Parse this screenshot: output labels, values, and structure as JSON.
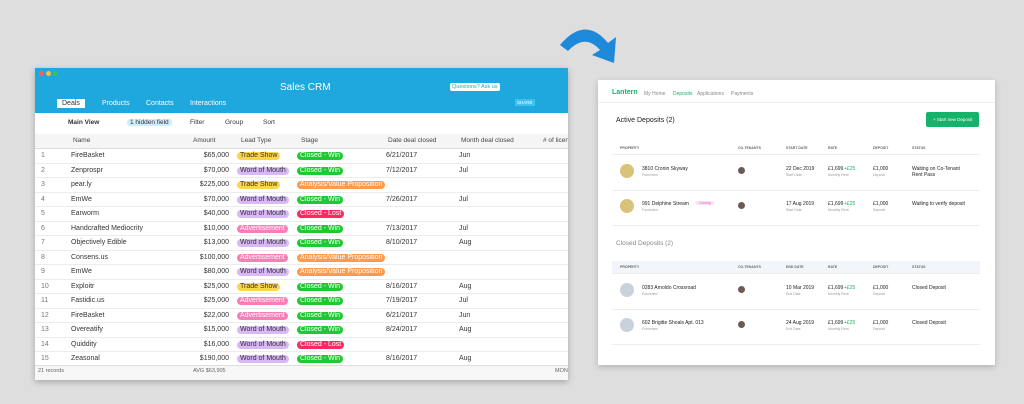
{
  "crm": {
    "title": "Sales CRM",
    "help": "Questions? Ask us",
    "tabs": [
      "Deals",
      "Products",
      "Contacts",
      "Interactions"
    ],
    "share": "SHARE",
    "toolbar": [
      "Main View",
      "1 hidden field",
      "Filter",
      "Group",
      "Sort"
    ],
    "columns": [
      "Name",
      "Amount",
      "Lead Type",
      "Stage",
      "Date deal closed",
      "Month deal closed",
      "# of licen"
    ],
    "rows": [
      [
        "1",
        "FireBasket",
        "$65,000",
        "Trade Show",
        "Closed - Win",
        "6/21/2017",
        "Jun"
      ],
      [
        "2",
        "Zenprospr",
        "$70,000",
        "Word of Mouth",
        "Closed - Win",
        "7/12/2017",
        "Jul"
      ],
      [
        "3",
        "pear.ly",
        "$225,000",
        "Trade Show",
        "Analysis/Value Proposition",
        null,
        null
      ],
      [
        "4",
        "EmWe",
        "$70,000",
        "Word of Mouth",
        "Closed - Win",
        "7/26/2017",
        "Jul"
      ],
      [
        "5",
        "Earworm",
        "$40,000",
        "Word of Mouth",
        "Closed - Lost",
        null,
        null
      ],
      [
        "6",
        "Handcrafted Mediocrity",
        "$10,000",
        "Advertisement",
        "Closed - Win",
        "7/13/2017",
        "Jul"
      ],
      [
        "7",
        "Objectively Edible",
        "$13,000",
        "Word of Mouth",
        "Closed - Win",
        "8/10/2017",
        "Aug"
      ],
      [
        "8",
        "Consens.us",
        "$100,000",
        "Advertisement",
        "Analysis/Value Proposition",
        null,
        null
      ],
      [
        "9",
        "EmWe",
        "$80,000",
        "Word of Mouth",
        "Analysis/Value Proposition",
        null,
        null
      ],
      [
        "10",
        "Exploitr",
        "$25,000",
        "Trade Show",
        "Closed - Win",
        "8/16/2017",
        "Aug"
      ],
      [
        "11",
        "Fastidic.us",
        "$25,000",
        "Advertisement",
        "Closed - Win",
        "7/19/2017",
        "Jul"
      ],
      [
        "12",
        "FireBasket",
        "$22,000",
        "Advertisement",
        "Closed - Win",
        "6/21/2017",
        "Jun"
      ],
      [
        "13",
        "Overeatify",
        "$15,000",
        "Word of Mouth",
        "Closed - Win",
        "8/24/2017",
        "Aug"
      ],
      [
        "14",
        "Quiddity",
        "$16,000",
        "Word of Mouth",
        "Closed - Lost",
        null,
        null
      ],
      [
        "15",
        "Zeasonal",
        "$190,000",
        "Word of Mouth",
        "Closed - Win",
        "8/16/2017",
        "Aug"
      ]
    ],
    "tag_colors": {
      "Trade Show": "#fcd54c",
      "Word of Mouth": "#d9b8f7",
      "Advertisement": "#f77fb6",
      "Closed - Win": "#20c933",
      "Closed - Lost": "#f82b60",
      "Analysis/Value Proposition": "#ff9a4d"
    },
    "footer": [
      "21 records",
      "AVG $63,905",
      "MON"
    ]
  },
  "lantern": {
    "brand": "Lantern",
    "nav": [
      "My Home",
      "Deposits",
      "Applications",
      "Payments"
    ],
    "active": {
      "title": "Active Deposits (2)",
      "button": "+ Start new Deposit",
      "columns": [
        "PROPERTY",
        "CO-TENANTS",
        "START DATE",
        "RATE",
        "DEPOSIT",
        "STATUS"
      ],
      "rows": [
        {
          "property": "3810 Cronin Skyway",
          "sub": "Furnished",
          "date": "22 Dec 2019",
          "date_sub": "Start Date",
          "rate": "£1,699",
          "extra": "+£25",
          "rate_sub": "Monthly Rent",
          "deposit": "£1,000",
          "deposit_sub": "Deposit",
          "status": "Waiting on Co-Tenant Rent Pass"
        },
        {
          "property": "991 Delphine Stream",
          "badge": "Closing",
          "sub": "Furnished",
          "date": "17 Aug 2019",
          "date_sub": "Start Date",
          "rate": "£1,699",
          "extra": "+£25",
          "rate_sub": "Monthly Rent",
          "deposit": "£1,000",
          "deposit_sub": "Deposit",
          "status": "Waiting to verify deposit"
        }
      ]
    },
    "closed": {
      "title": "Closed Deposits (2)",
      "columns": [
        "PROPERTY",
        "CO-TENANTS",
        "END DATE",
        "RATE",
        "DEPOSIT",
        "STATUS"
      ],
      "rows": [
        {
          "property": "0283 Arnoldo Crossroad",
          "sub": "Furnished",
          "date": "10 Mar 2019",
          "date_sub": "End Date",
          "rate": "£1,699",
          "extra": "+£25",
          "rate_sub": "Monthly Rent",
          "deposit": "£1,000",
          "deposit_sub": "Deposit",
          "status": "Closed Deposit"
        },
        {
          "property": "602 Brigitte Shoals Apt. 013",
          "sub": "Furnished",
          "date": "24 Aug 2019",
          "date_sub": "End Date",
          "rate": "£1,699",
          "extra": "+£25",
          "rate_sub": "Monthly Rent",
          "deposit": "£1,000",
          "deposit_sub": "Deposit",
          "status": "Closed Deposit"
        }
      ]
    }
  }
}
